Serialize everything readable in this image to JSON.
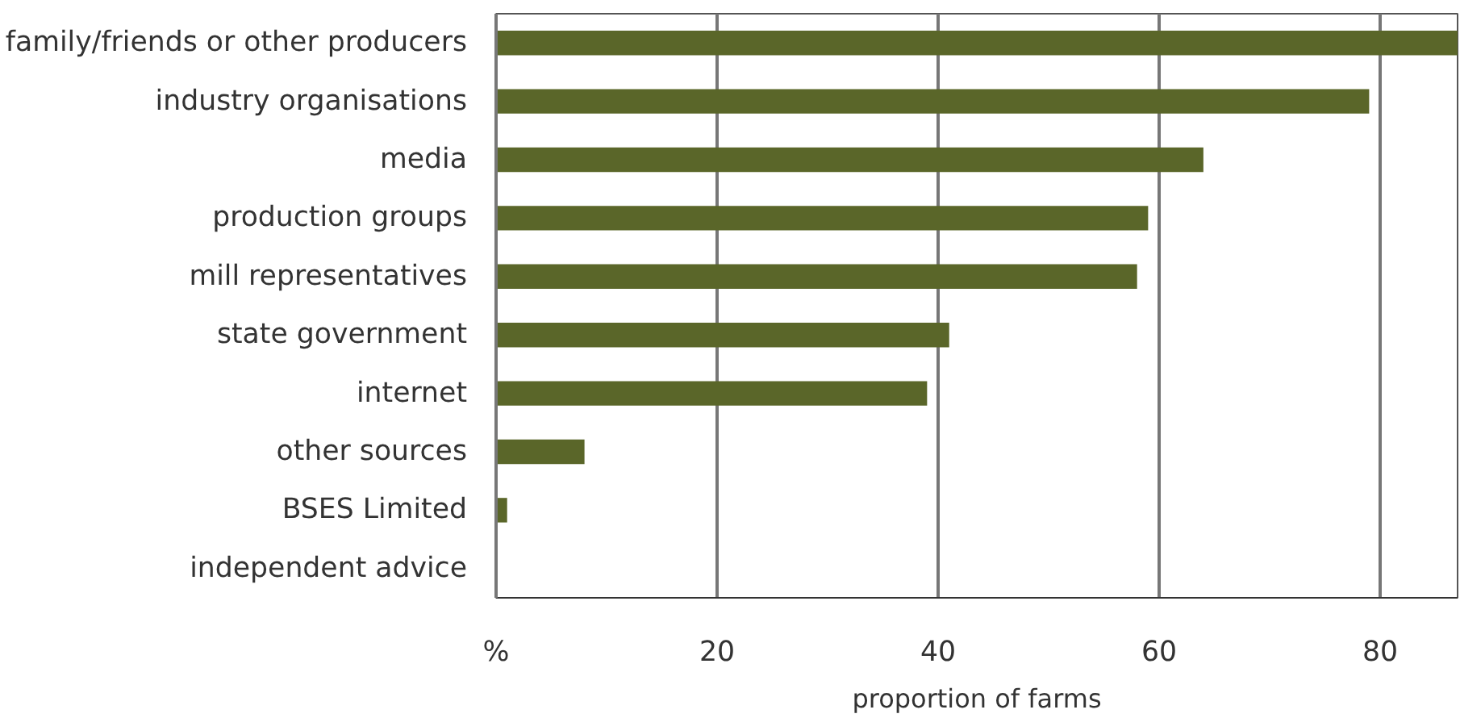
{
  "chart_data": {
    "type": "bar",
    "orientation": "horizontal",
    "categories": [
      "family/friends or other producers",
      "industry organisations",
      "media",
      "production groups",
      "mill representatives",
      "state government",
      "internet",
      "other sources",
      "BSES Limited",
      "independent advice"
    ],
    "values": [
      87,
      79,
      64,
      59,
      58,
      41,
      39,
      8,
      1,
      0.1
    ],
    "color": "#5a6629",
    "xlabel": "proportion of farms",
    "xlim": [
      0,
      87
    ],
    "xticks": [
      {
        "value": 0,
        "label": "%"
      },
      20,
      40,
      60,
      80
    ],
    "grid": "x"
  }
}
